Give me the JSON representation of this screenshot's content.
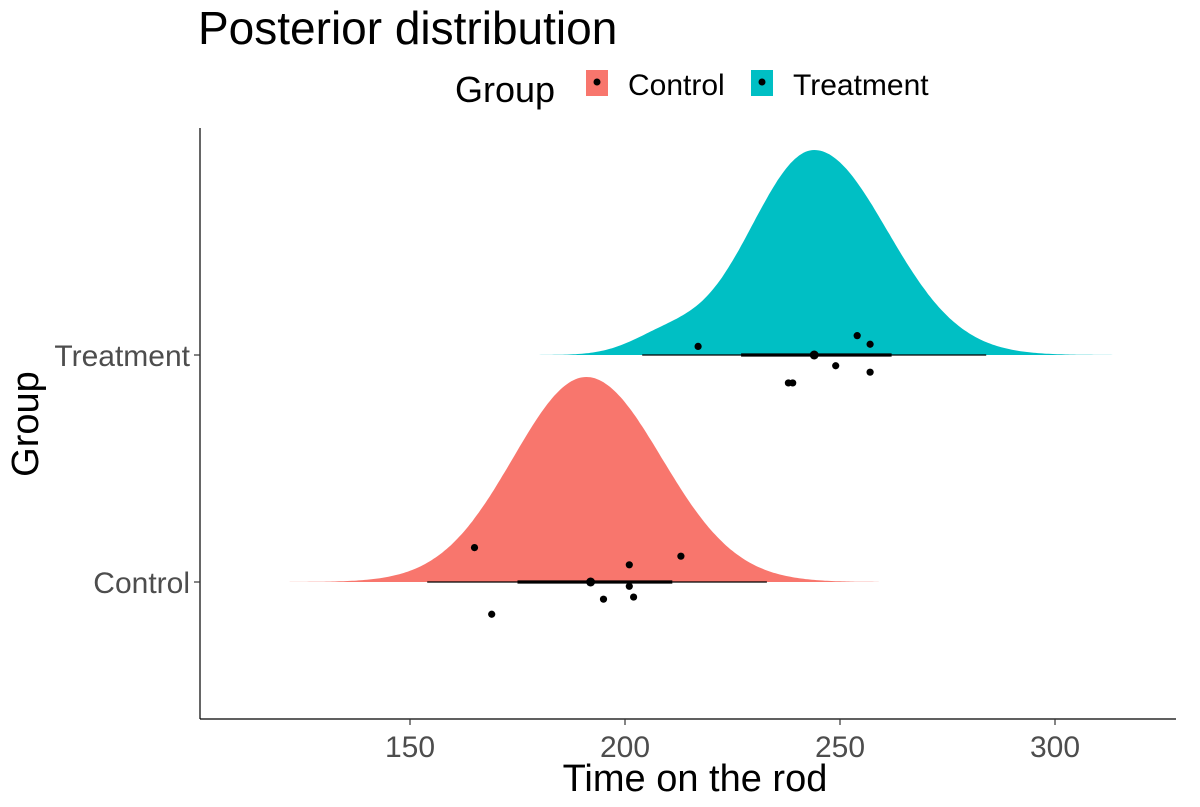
{
  "chart_data": {
    "type": "density",
    "title": "Posterior distribution",
    "xlabel": "Time on the rod",
    "ylabel": "Group",
    "xlim": [
      100,
      330
    ],
    "x_ticks": [
      150,
      200,
      250,
      300
    ],
    "grid": false,
    "legend": {
      "title": "Group",
      "position": "top",
      "entries": [
        "Control",
        "Treatment"
      ]
    },
    "groups": [
      {
        "name": "Control",
        "color": "#F8766D",
        "density": {
          "mode": 191,
          "sd_left": 17,
          "sd_right": 17.5,
          "min": 122,
          "max": 259,
          "shoulder": null
        },
        "point_estimate": 192,
        "interval_inner": [
          175,
          211
        ],
        "interval_outer": [
          154,
          233
        ],
        "points": [
          {
            "x": 165,
            "jitter": 0.16
          },
          {
            "x": 213,
            "jitter": 0.12
          },
          {
            "x": 201,
            "jitter": 0.08
          },
          {
            "x": 201,
            "jitter": -0.02
          },
          {
            "x": 195,
            "jitter": -0.08
          },
          {
            "x": 202,
            "jitter": -0.07
          },
          {
            "x": 169,
            "jitter": -0.15
          }
        ]
      },
      {
        "name": "Treatment",
        "color": "#00BFC4",
        "density": {
          "mode": 244,
          "sd_left": 15,
          "sd_right": 17,
          "min": 165,
          "max": 321,
          "shoulder": {
            "x": 209,
            "sd": 8,
            "height": 0.08
          }
        },
        "point_estimate": 244,
        "interval_inner": [
          227,
          262
        ],
        "interval_outer": [
          204,
          284
        ],
        "points": [
          {
            "x": 217,
            "jitter": 0.04
          },
          {
            "x": 254,
            "jitter": 0.09
          },
          {
            "x": 257,
            "jitter": 0.05
          },
          {
            "x": 249,
            "jitter": -0.05
          },
          {
            "x": 257,
            "jitter": -0.08
          },
          {
            "x": 238,
            "jitter": -0.13
          },
          {
            "x": 239,
            "jitter": -0.13
          }
        ]
      }
    ]
  }
}
